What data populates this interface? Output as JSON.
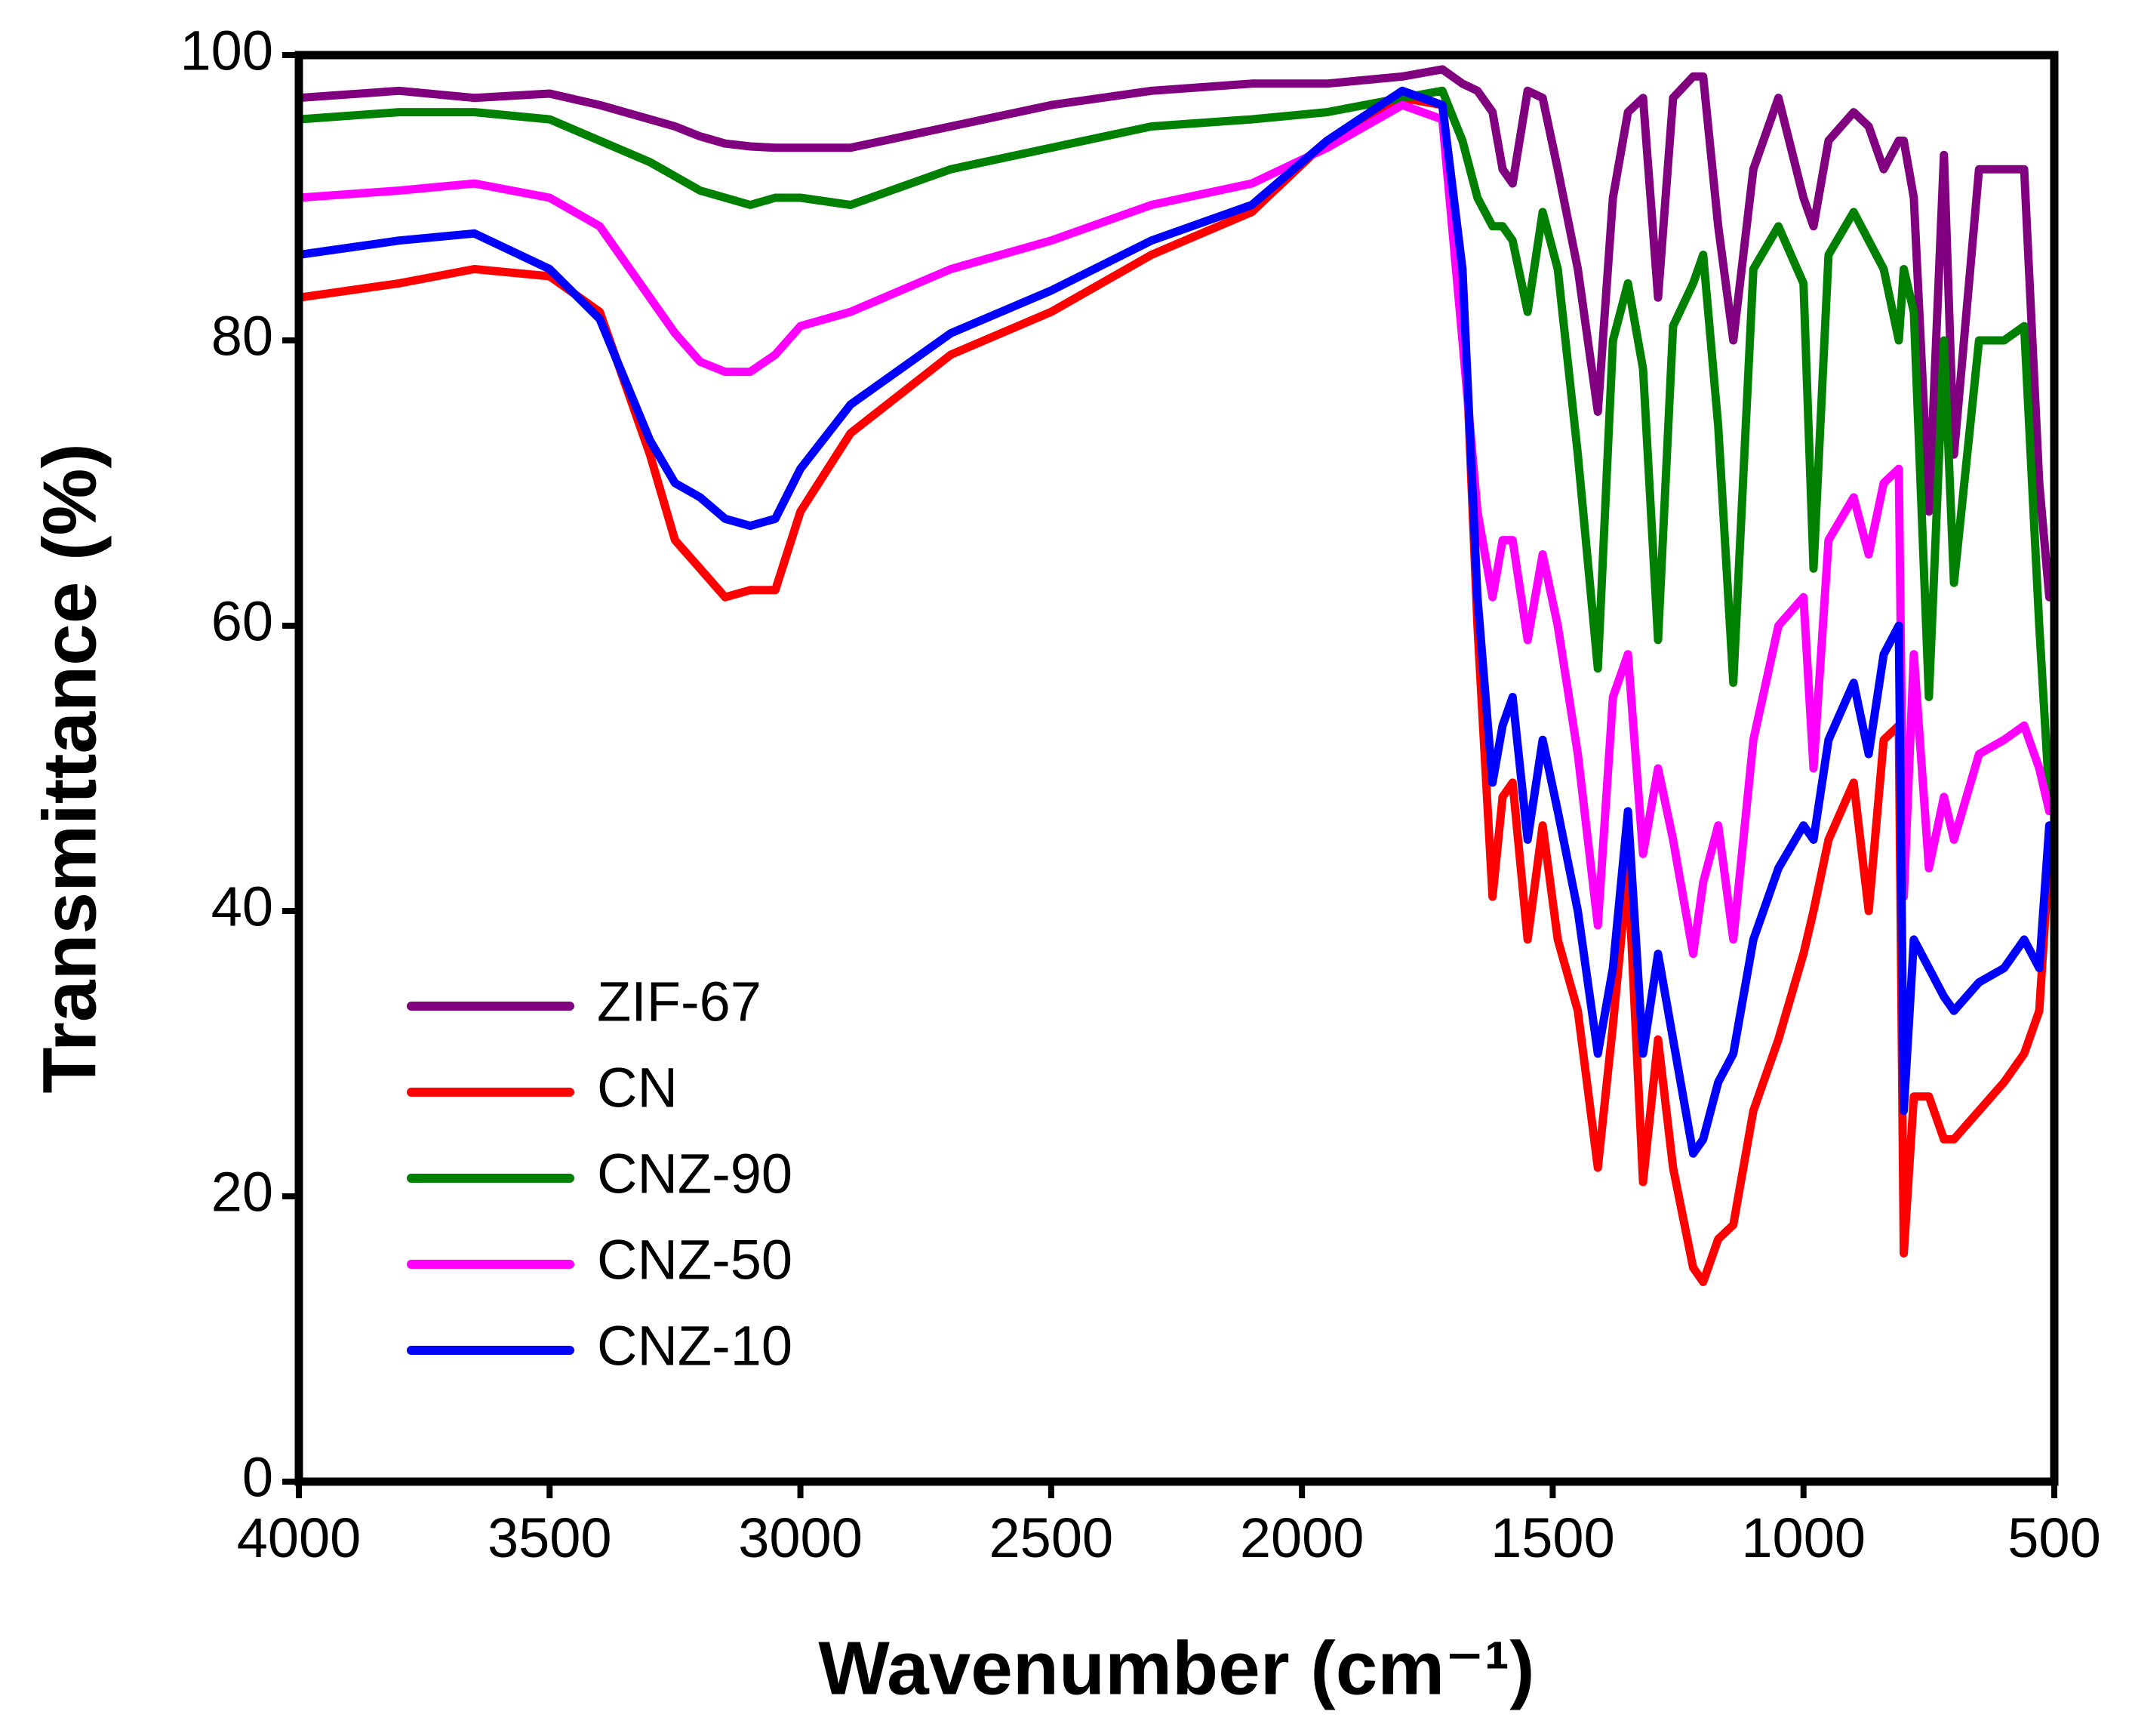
{
  "chart_data": {
    "type": "line",
    "xlabel": "Wavenumber (cm⁻¹)",
    "ylabel": "Transmittance (%)",
    "xlim": [
      4000,
      500
    ],
    "ylim": [
      0,
      100
    ],
    "xticks": [
      4000,
      3500,
      3000,
      2500,
      2000,
      1500,
      1000,
      500
    ],
    "yticks": [
      0,
      20,
      40,
      60,
      80,
      100
    ],
    "legend": "left",
    "x": [
      4000,
      3800,
      3650,
      3500,
      3400,
      3300,
      3250,
      3200,
      3150,
      3100,
      3050,
      3000,
      2900,
      2700,
      2500,
      2300,
      2100,
      1950,
      1800,
      1720,
      1680,
      1650,
      1620,
      1600,
      1580,
      1550,
      1520,
      1490,
      1450,
      1410,
      1380,
      1350,
      1320,
      1290,
      1260,
      1220,
      1200,
      1170,
      1140,
      1100,
      1050,
      1000,
      980,
      950,
      900,
      870,
      840,
      810,
      800,
      780,
      750,
      720,
      700,
      650,
      600,
      560,
      530,
      510
    ],
    "series": [
      {
        "name": "ZIF-67",
        "color": "#800080",
        "values": [
          97,
          97.5,
          97,
          97.3,
          96.5,
          95.5,
          95,
          94.3,
          93.8,
          93.6,
          93.5,
          93.5,
          93.5,
          95,
          96.5,
          97.5,
          98,
          98,
          98.5,
          99,
          98,
          97.5,
          96,
          92,
          91,
          97.5,
          97,
          92,
          85,
          75,
          90,
          96,
          97,
          83,
          97,
          98.5,
          98.5,
          88,
          80,
          92,
          97,
          90,
          88,
          94,
          96,
          95,
          92,
          94,
          94,
          90,
          68,
          93,
          72,
          92,
          92,
          92,
          70,
          62
        ]
      },
      {
        "name": "CN",
        "color": "#ff0000",
        "values": [
          83,
          84,
          85,
          84.5,
          82,
          72,
          66,
          64,
          62,
          62.5,
          62.5,
          68,
          73.5,
          79,
          82,
          86,
          89,
          94,
          97,
          96.5,
          85,
          60,
          41,
          48,
          49,
          38,
          46,
          38,
          33,
          22,
          32,
          43,
          21,
          31,
          22,
          15,
          14,
          17,
          18,
          26,
          31,
          37,
          40,
          45,
          49,
          40,
          52,
          53,
          16,
          27,
          27,
          24,
          24,
          26,
          28,
          30,
          33,
          44
        ]
      },
      {
        "name": "CNZ-90",
        "color": "#008000",
        "values": [
          95.5,
          96,
          96,
          95.5,
          94,
          92.5,
          91.5,
          90.5,
          90,
          89.5,
          90,
          90,
          89.5,
          92,
          93.5,
          95,
          95.5,
          96,
          97,
          97.5,
          94,
          90,
          88,
          88,
          87,
          82,
          89,
          85,
          72,
          57,
          80,
          84,
          78,
          59,
          81,
          84,
          86,
          74,
          56,
          85,
          88,
          84,
          64,
          86,
          89,
          87,
          85,
          80,
          85,
          82,
          55,
          80,
          63,
          80,
          80,
          81,
          60,
          48
        ]
      },
      {
        "name": "CNZ-50",
        "color": "#ff00ff",
        "values": [
          90,
          90.5,
          91,
          90,
          88,
          83,
          80.5,
          78.5,
          77.8,
          77.8,
          79,
          81,
          82,
          85,
          87,
          89.5,
          91,
          93.5,
          96.5,
          95.5,
          80,
          68,
          62,
          66,
          66,
          59,
          65,
          60,
          51,
          39,
          55,
          58,
          44,
          50,
          45,
          37,
          42,
          46,
          38,
          52,
          60,
          62,
          50,
          66,
          69,
          65,
          70,
          71,
          41,
          58,
          43,
          48,
          45,
          51,
          52,
          53,
          50,
          47
        ]
      },
      {
        "name": "CNZ-10",
        "color": "#0000ff",
        "values": [
          86,
          87,
          87.5,
          85,
          81.5,
          73,
          70,
          69,
          67.5,
          67,
          67.5,
          71,
          75.5,
          80.5,
          83.5,
          87,
          89.5,
          94,
          97.5,
          96.5,
          85,
          62,
          49,
          53,
          55,
          45,
          52,
          47,
          40,
          30,
          36,
          47,
          30,
          37,
          31,
          23,
          24,
          28,
          30,
          38,
          43,
          46,
          45,
          52,
          56,
          51,
          58,
          60,
          26,
          38,
          36,
          34,
          33,
          35,
          36,
          38,
          36,
          46
        ]
      }
    ]
  }
}
